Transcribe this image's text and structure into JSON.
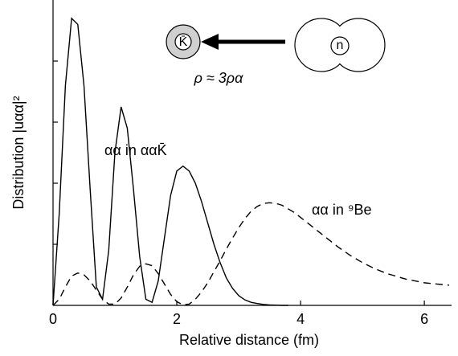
{
  "chart_data": {
    "type": "line",
    "x_label": "Relative distance  (fm)",
    "y_label": "Distribution |uαα|²",
    "annotations": [
      "K̄",
      "n",
      "ρ ≈ 3ρα"
    ],
    "xlim": [
      0,
      6.44
    ],
    "xticks": [
      0,
      2,
      4,
      6
    ],
    "ylim": [
      0,
      5
    ],
    "yticks": [
      1,
      2,
      3,
      4
    ],
    "x": [
      0,
      0.1,
      0.2,
      0.3,
      0.4,
      0.5,
      0.6,
      0.7,
      0.8,
      0.9,
      1.0,
      1.1,
      1.2,
      1.3,
      1.4,
      1.5,
      1.6,
      1.7,
      1.8,
      1.9,
      2.0,
      2.1,
      2.2,
      2.3,
      2.4,
      2.5,
      2.6,
      2.7,
      2.8,
      2.9,
      3.0,
      3.1,
      3.2,
      3.3,
      3.4,
      3.5,
      3.6,
      3.7,
      3.8,
      3.9,
      4.0,
      4.1,
      4.2,
      4.3,
      4.4,
      4.5,
      4.6,
      4.7,
      4.8,
      4.9,
      5.0,
      5.1,
      5.2,
      5.3,
      5.4,
      5.5,
      5.6,
      5.7,
      5.8,
      5.9,
      6.0,
      6.1,
      6.2,
      6.3,
      6.4
    ],
    "series": [
      {
        "name": "αα in ααK̄",
        "color": "#000000",
        "dash": false,
        "values": [
          0,
          1.5,
          3.6,
          4.7,
          4.6,
          3.6,
          1.9,
          0.3,
          0.1,
          0.9,
          2.5,
          3.25,
          2.9,
          1.9,
          0.8,
          0.1,
          0.05,
          0.4,
          1.1,
          1.8,
          2.2,
          2.28,
          2.2,
          2.0,
          1.7,
          1.35,
          1.0,
          0.7,
          0.45,
          0.28,
          0.16,
          0.09,
          0.05,
          0.03,
          0.015,
          0.008,
          0.004,
          0,
          0,
          null,
          null,
          null,
          null,
          null,
          null,
          null,
          null,
          null,
          null,
          null,
          null,
          null,
          null,
          null,
          null,
          null,
          null,
          null,
          null,
          null,
          null,
          null,
          null,
          null,
          null
        ]
      },
      {
        "name": "αα in ⁹Be",
        "color": "#000000",
        "dash": true,
        "values": [
          0,
          0.1,
          0.3,
          0.48,
          0.53,
          0.5,
          0.4,
          0.25,
          0.1,
          0.02,
          0.02,
          0.12,
          0.3,
          0.5,
          0.64,
          0.68,
          0.65,
          0.52,
          0.35,
          0.18,
          0.06,
          0.01,
          0.02,
          0.1,
          0.22,
          0.37,
          0.55,
          0.73,
          0.92,
          1.1,
          1.27,
          1.42,
          1.54,
          1.62,
          1.67,
          1.68,
          1.67,
          1.64,
          1.58,
          1.52,
          1.44,
          1.36,
          1.28,
          1.2,
          1.12,
          1.04,
          0.96,
          0.89,
          0.82,
          0.76,
          0.7,
          0.65,
          0.6,
          0.56,
          0.52,
          0.49,
          0.46,
          0.43,
          0.41,
          0.39,
          0.37,
          0.36,
          0.35,
          0.34,
          0.33
        ]
      }
    ]
  }
}
